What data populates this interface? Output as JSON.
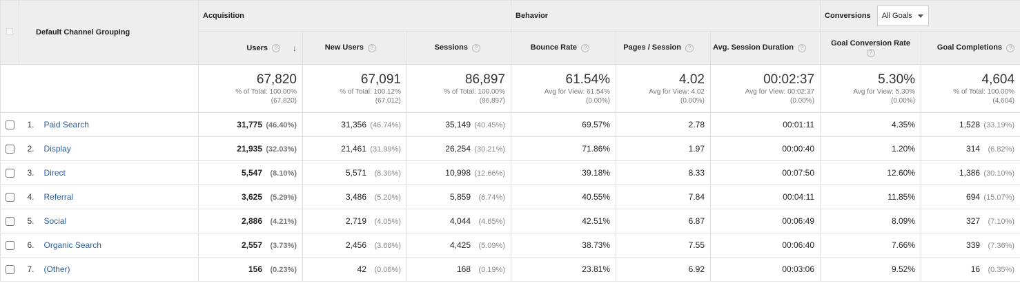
{
  "header": {
    "dimension": "Default Channel Grouping",
    "groups": {
      "acquisition": "Acquisition",
      "behavior": "Behavior",
      "conversions": "Conversions"
    },
    "goal_select": "All Goals",
    "columns": {
      "users": "Users",
      "new_users": "New Users",
      "sessions": "Sessions",
      "bounce_rate": "Bounce Rate",
      "pages_session": "Pages / Session",
      "avg_duration": "Avg. Session Duration",
      "goal_conv_rate": "Goal Conversion Rate",
      "goal_completions": "Goal Completions"
    },
    "help": "?"
  },
  "totals": {
    "users": {
      "value": "67,820",
      "l1": "% of Total: 100.00%",
      "l2": "(67,820)"
    },
    "new_users": {
      "value": "67,091",
      "l1": "% of Total: 100.12%",
      "l2": "(67,012)"
    },
    "sessions": {
      "value": "86,897",
      "l1": "% of Total: 100.00%",
      "l2": "(86,897)"
    },
    "bounce_rate": {
      "value": "61.54%",
      "l1": "Avg for View: 61.54%",
      "l2": "(0.00%)"
    },
    "pages_session": {
      "value": "4.02",
      "l1": "Avg for View: 4.02",
      "l2": "(0.00%)"
    },
    "avg_duration": {
      "value": "00:02:37",
      "l1": "Avg for View: 00:02:37",
      "l2": "(0.00%)"
    },
    "goal_conv_rate": {
      "value": "5.30%",
      "l1": "Avg for View: 5.30%",
      "l2": "(0.00%)"
    },
    "goal_completions": {
      "value": "4,604",
      "l1": "% of Total: 100.00%",
      "l2": "(4,604)"
    }
  },
  "rows": [
    {
      "num": "1.",
      "channel": "Paid Search",
      "users": "31,775",
      "users_pct": "(46.40%)",
      "new_users": "31,356",
      "new_users_pct": "(46.74%)",
      "sessions": "35,149",
      "sessions_pct": "(40.45%)",
      "bounce": "69.57%",
      "pages": "2.78",
      "duration": "00:01:11",
      "conv_rate": "4.35%",
      "completions": "1,528",
      "completions_pct": "(33.19%)"
    },
    {
      "num": "2.",
      "channel": "Display",
      "users": "21,935",
      "users_pct": "(32.03%)",
      "new_users": "21,461",
      "new_users_pct": "(31.99%)",
      "sessions": "26,254",
      "sessions_pct": "(30.21%)",
      "bounce": "71.86%",
      "pages": "1.97",
      "duration": "00:00:40",
      "conv_rate": "1.20%",
      "completions": "314",
      "completions_pct": "(6.82%)"
    },
    {
      "num": "3.",
      "channel": "Direct",
      "users": "5,547",
      "users_pct": "(8.10%)",
      "new_users": "5,571",
      "new_users_pct": "(8.30%)",
      "sessions": "10,998",
      "sessions_pct": "(12.66%)",
      "bounce": "39.18%",
      "pages": "8.33",
      "duration": "00:07:50",
      "conv_rate": "12.60%",
      "completions": "1,386",
      "completions_pct": "(30.10%)"
    },
    {
      "num": "4.",
      "channel": "Referral",
      "users": "3,625",
      "users_pct": "(5.29%)",
      "new_users": "3,486",
      "new_users_pct": "(5.20%)",
      "sessions": "5,859",
      "sessions_pct": "(6.74%)",
      "bounce": "40.55%",
      "pages": "7.84",
      "duration": "00:04:11",
      "conv_rate": "11.85%",
      "completions": "694",
      "completions_pct": "(15.07%)"
    },
    {
      "num": "5.",
      "channel": "Social",
      "users": "2,886",
      "users_pct": "(4.21%)",
      "new_users": "2,719",
      "new_users_pct": "(4.05%)",
      "sessions": "4,044",
      "sessions_pct": "(4.65%)",
      "bounce": "42.51%",
      "pages": "6.87",
      "duration": "00:06:49",
      "conv_rate": "8.09%",
      "completions": "327",
      "completions_pct": "(7.10%)"
    },
    {
      "num": "6.",
      "channel": "Organic Search",
      "users": "2,557",
      "users_pct": "(3.73%)",
      "new_users": "2,456",
      "new_users_pct": "(3.66%)",
      "sessions": "4,425",
      "sessions_pct": "(5.09%)",
      "bounce": "38.73%",
      "pages": "7.55",
      "duration": "00:06:40",
      "conv_rate": "7.66%",
      "completions": "339",
      "completions_pct": "(7.36%)"
    },
    {
      "num": "7.",
      "channel": "(Other)",
      "users": "156",
      "users_pct": "(0.23%)",
      "new_users": "42",
      "new_users_pct": "(0.06%)",
      "sessions": "168",
      "sessions_pct": "(0.19%)",
      "bounce": "23.81%",
      "pages": "6.92",
      "duration": "00:03:06",
      "conv_rate": "9.52%",
      "completions": "16",
      "completions_pct": "(0.35%)"
    }
  ]
}
